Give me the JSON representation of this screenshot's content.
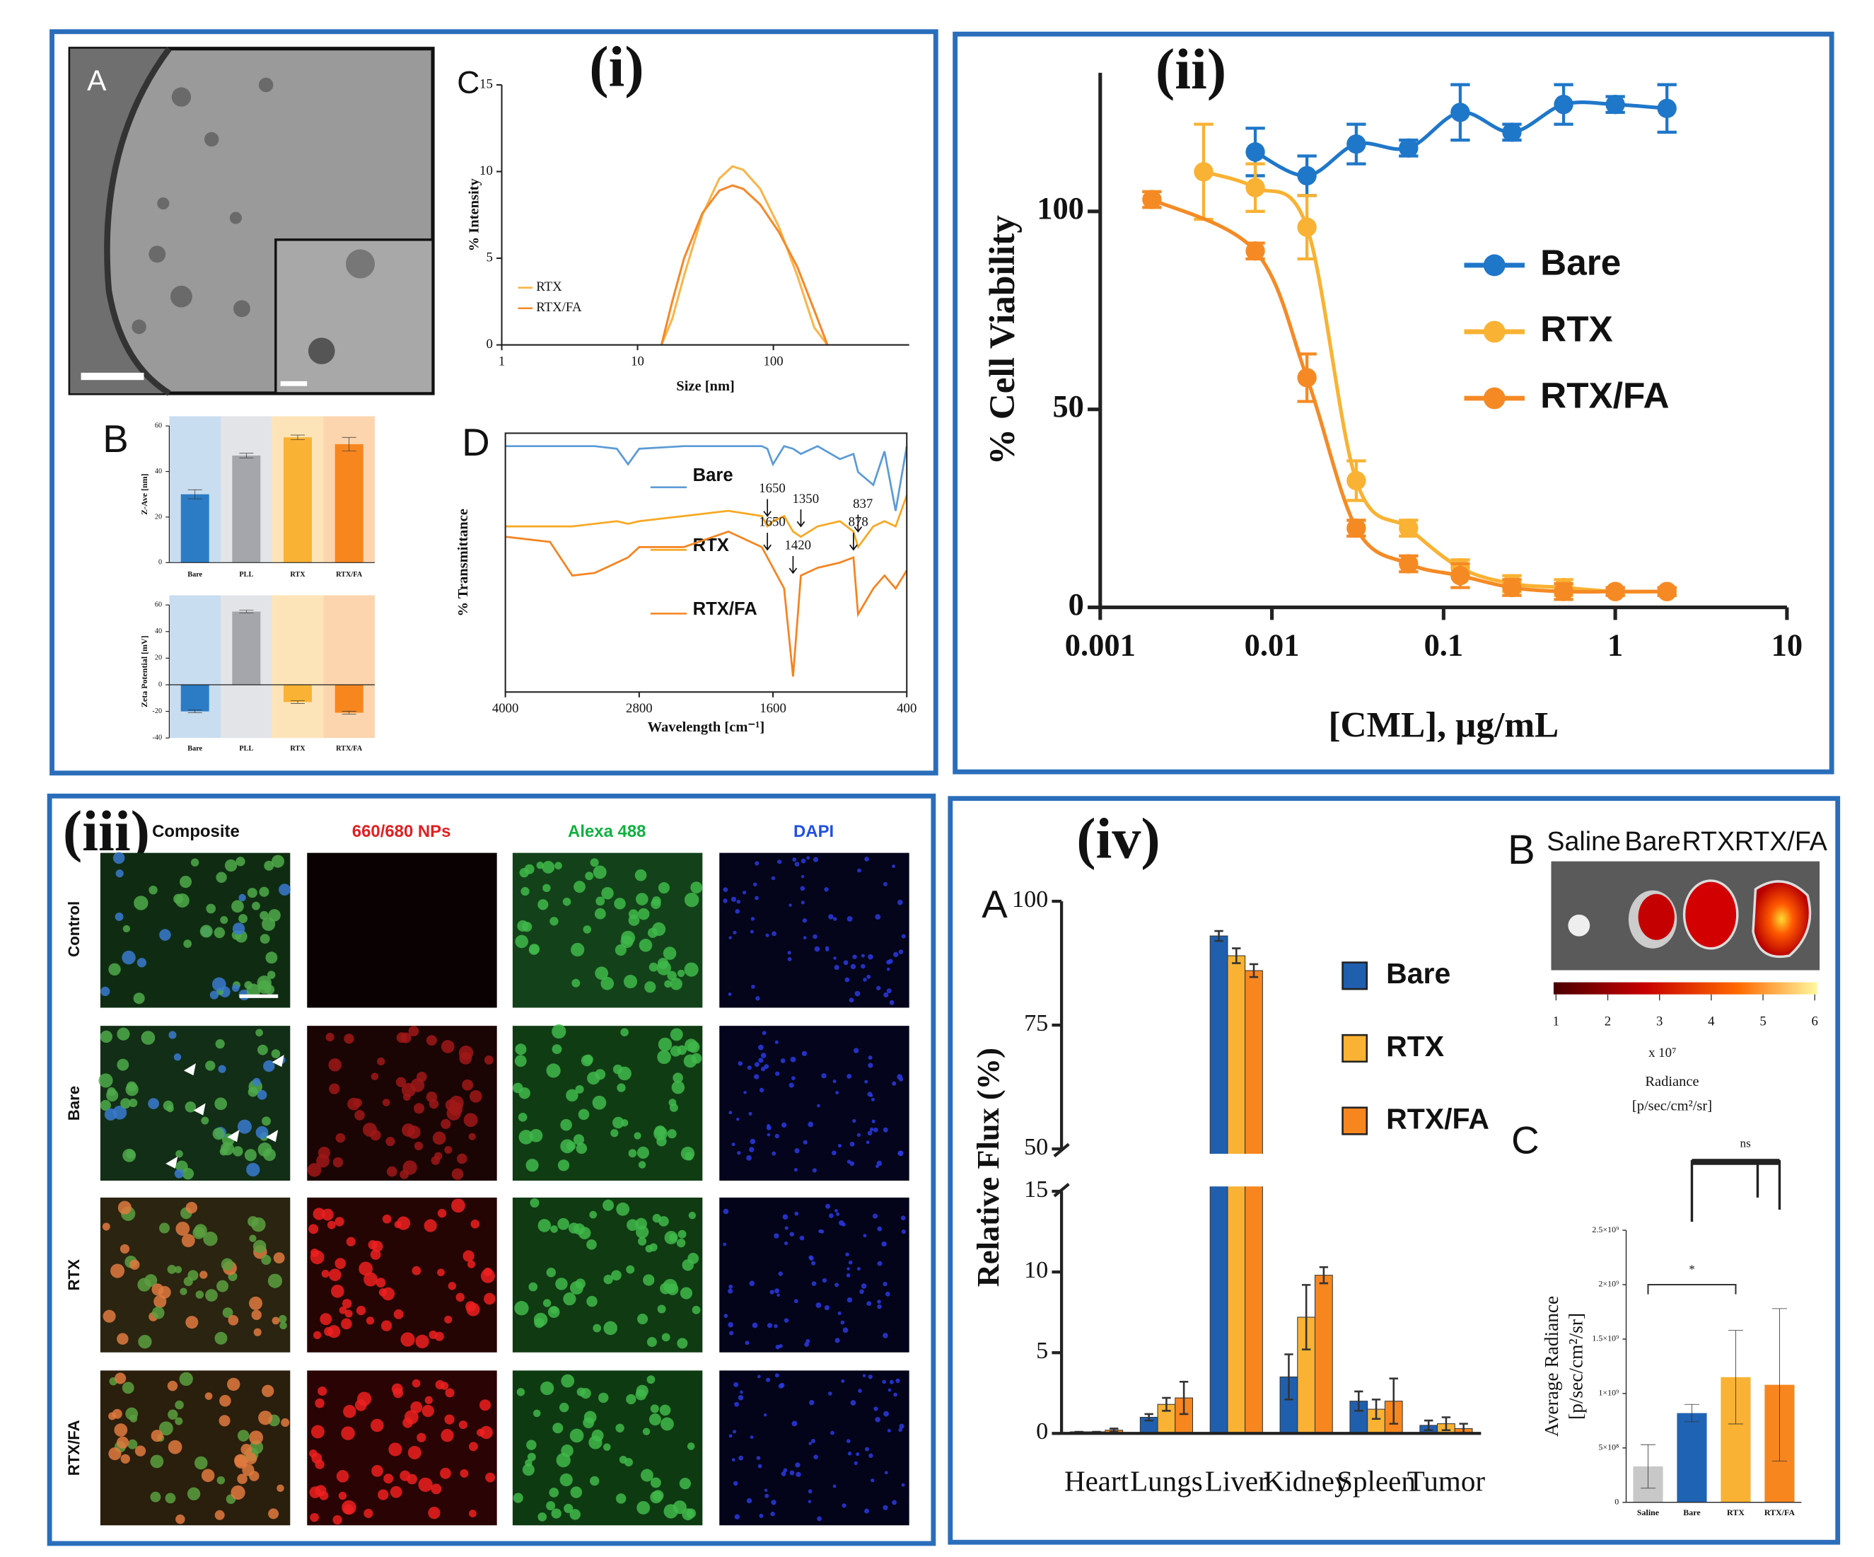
{
  "panels": [
    "(i)",
    "(ii)",
    "(iii)",
    "(iv)"
  ],
  "tem": {
    "label": "A"
  },
  "microscopy": {
    "columns": [
      "Composite",
      "660/680 NPs",
      "Alexa 488",
      "DAPI"
    ],
    "rows": [
      "Control",
      "Bare",
      "RTX",
      "RTX/FA"
    ]
  },
  "imaging": {
    "label": "B",
    "groups": [
      "Saline",
      "Bare",
      "RTX",
      "RTX/FA"
    ],
    "clim": [
      1,
      6
    ],
    "colorbar_ticks": [
      1,
      2,
      3,
      4,
      5,
      6
    ],
    "scale_label": "x 10⁷",
    "title": "Radiance",
    "unit": "[p/sec/cm²/sr]"
  },
  "chart_data": [
    {
      "type": "line",
      "label": "C",
      "xlabel": "Size [nm]",
      "ylabel": "% Intensity",
      "xlog": true,
      "xlim": [
        1,
        1000
      ],
      "xticks": [
        1,
        10,
        100
      ],
      "ylim": [
        0,
        15
      ],
      "yticks": [
        0,
        5,
        10,
        15
      ],
      "x": [
        15,
        18,
        22,
        30,
        40,
        50,
        60,
        80,
        110,
        150,
        200,
        250
      ],
      "series": [
        {
          "name": "RTX",
          "color": "#f9b54a",
          "values": [
            0,
            1.5,
            4,
            7.5,
            9.6,
            10.3,
            10.1,
            9,
            6.8,
            4,
            1,
            0
          ]
        },
        {
          "name": "RTX/FA",
          "color": "#f5892a",
          "values": [
            0,
            2.5,
            5,
            7.6,
            8.9,
            9.2,
            9,
            8.1,
            6.5,
            4.5,
            2,
            0
          ]
        }
      ],
      "legend": "lower left"
    },
    {
      "type": "bar",
      "label": "B",
      "ylabel": "Z-Ave [nm]",
      "categories": [
        "Bare",
        "PLL",
        "RTX",
        "RTX/FA"
      ],
      "values": [
        30,
        47,
        55,
        52
      ],
      "errors": [
        2,
        1,
        1,
        3
      ],
      "colors": [
        "#2b7cc4",
        "#a4a6ab",
        "#f9b233",
        "#f7861f"
      ],
      "band_colors": [
        "#c9ddf0",
        "#e2e4e8",
        "#fde4b8",
        "#fcd5ae"
      ],
      "ylim": [
        0,
        60
      ],
      "yticks": [
        0,
        20,
        40,
        60
      ]
    },
    {
      "type": "bar",
      "ylabel": "Zeta Potential [mV]",
      "categories": [
        "Bare",
        "PLL",
        "RTX",
        "RTX/FA"
      ],
      "values": [
        -20,
        55,
        -13,
        -21
      ],
      "errors": [
        1,
        1,
        1,
        1
      ],
      "colors": [
        "#2b7cc4",
        "#a4a6ab",
        "#f9b233",
        "#f7861f"
      ],
      "band_colors": [
        "#c9ddf0",
        "#e2e4e8",
        "#fde4b8",
        "#fcd5ae"
      ],
      "ylim": [
        -40,
        60
      ],
      "yticks": [
        -40,
        -20,
        0,
        20,
        40,
        60
      ]
    },
    {
      "type": "line",
      "label": "D",
      "xlabel": "Wavelength [cm⁻¹]",
      "ylabel": "% Transmittance",
      "frame": true,
      "xlim": [
        4000,
        400
      ],
      "xticks": [
        4000,
        2800,
        1600,
        400
      ],
      "ylim": [
        0,
        100
      ],
      "x": [
        4000,
        3600,
        3400,
        3200,
        3000,
        2900,
        2800,
        2400,
        2000,
        1700,
        1650,
        1600,
        1500,
        1420,
        1350,
        1200,
        1000,
        878,
        837,
        700,
        600,
        500,
        400
      ],
      "series": [
        {
          "name": "Bare",
          "color": "#5b9bd5",
          "values": [
            95,
            95,
            95,
            95,
            94,
            88,
            94,
            95,
            95,
            95,
            94,
            88,
            95,
            94,
            92,
            95,
            90,
            92,
            85,
            80,
            93,
            70,
            95
          ]
        },
        {
          "name": "RTX",
          "color": "#f7a823",
          "values": [
            64,
            64,
            64,
            65,
            66,
            65,
            66,
            68,
            70,
            68,
            64,
            66,
            68,
            62,
            60,
            64,
            66,
            62,
            56,
            64,
            66,
            64,
            76
          ]
        },
        {
          "name": "RTX/FA",
          "color": "#f5831f",
          "values": [
            60,
            58,
            45,
            46,
            50,
            52,
            56,
            56,
            62,
            56,
            52,
            48,
            40,
            6,
            45,
            48,
            50,
            52,
            30,
            40,
            45,
            40,
            47
          ]
        }
      ],
      "annotations": [
        {
          "x": 1650,
          "y": 68
        },
        {
          "x": 1350,
          "y": 64
        },
        {
          "x": 837,
          "y": 62
        },
        {
          "x": 1650,
          "y": 55
        },
        {
          "x": 1420,
          "y": 46
        },
        {
          "x": 878,
          "y": 55
        }
      ],
      "legend": "inline"
    },
    {
      "type": "scatter",
      "xlabel": "[CML], µg/mL",
      "ylabel": "% Cell Viability",
      "xlog": true,
      "xlim": [
        0.001,
        10
      ],
      "xticks": [
        0.001,
        0.01,
        0.1,
        1,
        10
      ],
      "ylim": [
        0,
        135
      ],
      "yticks": [
        0,
        50,
        100
      ],
      "x": [
        0.002,
        0.004,
        0.008,
        0.016,
        0.031,
        0.0625,
        0.125,
        0.25,
        0.5,
        1,
        2
      ],
      "series": [
        {
          "name": "Bare",
          "color": "#1f77c9",
          "values": [
            null,
            null,
            115,
            109,
            117,
            116,
            125,
            120,
            127,
            127,
            126
          ],
          "errors": [
            null,
            null,
            6,
            5,
            5,
            2,
            7,
            2,
            5,
            2,
            6
          ]
        },
        {
          "name": "RTX",
          "color": "#f9b233",
          "values": [
            null,
            110,
            106,
            96,
            32,
            20,
            10,
            6,
            5,
            4,
            4
          ],
          "errors": [
            null,
            12,
            6,
            8,
            5,
            2,
            2,
            2,
            2,
            1,
            1
          ]
        },
        {
          "name": "RTX/FA",
          "color": "#f58a25",
          "values": [
            103,
            null,
            90,
            58,
            20,
            11,
            8,
            5,
            4,
            4,
            4
          ],
          "errors": [
            2,
            null,
            2,
            6,
            2,
            2,
            3,
            2,
            2,
            1,
            1
          ]
        }
      ],
      "legend": "center right"
    },
    {
      "type": "bar",
      "label": "A",
      "ylabel": "Relative Flux (%)",
      "categories": [
        "Heart",
        "Lungs",
        "Liver",
        "Kidney",
        "Spleen",
        "Tumor"
      ],
      "series": [
        {
          "name": "Bare",
          "color": "#1f5fae",
          "values": [
            0.1,
            1,
            93,
            3.5,
            2,
            0.5
          ],
          "errors": [
            0,
            0.2,
            1,
            1.4,
            0.6,
            0.3
          ]
        },
        {
          "name": "RTX",
          "color": "#f9b233",
          "values": [
            0.1,
            1.8,
            89,
            7.2,
            1.5,
            0.6
          ],
          "errors": [
            0,
            0.4,
            1.5,
            2,
            0.6,
            0.4
          ]
        },
        {
          "name": "RTX/FA",
          "color": "#f7861f",
          "values": [
            0.2,
            2.2,
            86,
            9.8,
            2,
            0.3
          ],
          "errors": [
            0.1,
            1,
            1.3,
            0.5,
            1.4,
            0.3
          ]
        }
      ],
      "ylim": [
        0,
        100
      ],
      "yticks": [
        0,
        5,
        10,
        15,
        50,
        75,
        100
      ],
      "ybreak": [
        15,
        50
      ],
      "legend": "upper right"
    },
    {
      "type": "bar",
      "label": "C",
      "ylabel": [
        "Average Radiance",
        "[p/sec/cm²/sr]"
      ],
      "categories": [
        "Saline",
        "Bare",
        "RTX",
        "RTX/FA"
      ],
      "values": [
        330000000,
        820000000,
        1150000000,
        1080000000
      ],
      "errors": [
        200000000,
        80000000,
        430000000,
        700000000
      ],
      "colors": [
        "#c8c8c8",
        "#1f63b5",
        "#f9b233",
        "#f7861f"
      ],
      "ylim": [
        0,
        2500000000
      ],
      "yticks": [
        0,
        {
          "value": 500000000,
          "label": "5×10⁸"
        },
        {
          "value": 1000000000,
          "label": "1×10⁹"
        },
        {
          "value": 1500000000,
          "label": "1.5×10⁹"
        },
        {
          "value": 2000000000,
          "label": "2×10⁹"
        },
        {
          "value": 2500000000,
          "label": "2.5×10⁹"
        }
      ],
      "significance": [
        "*",
        "ns"
      ]
    }
  ]
}
